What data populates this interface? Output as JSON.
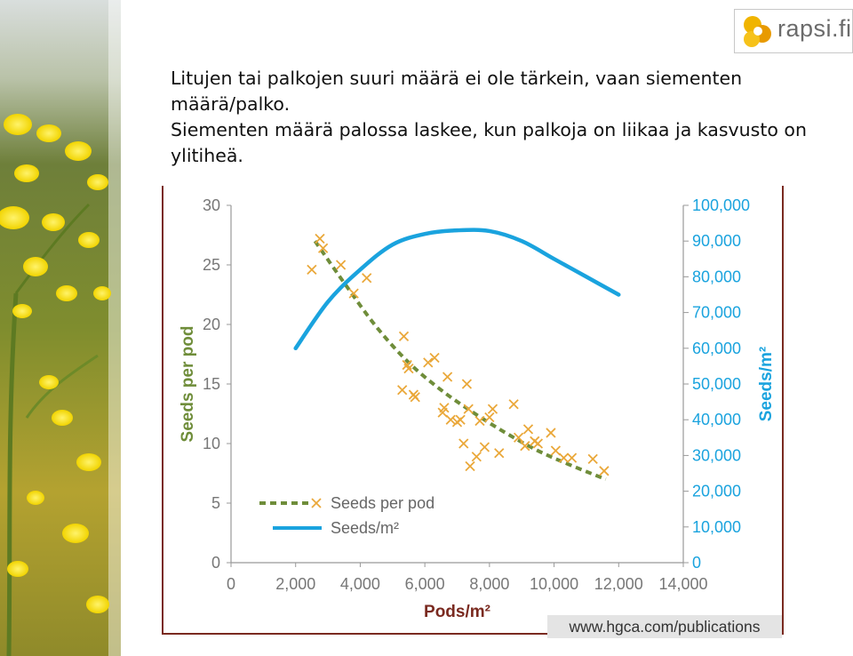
{
  "logo": {
    "text": "rapsi.fi"
  },
  "heading": {
    "line1": "Litujen tai palkojen suuri määrä ei ole tärkein, vaan siementen määrä/palko.",
    "line2": "Siementen määrä palossa laskee, kun palkoja on liikaa ja kasvusto on ylitiheä."
  },
  "source": "www.hgca.com/publications",
  "colors": {
    "green": "#6f8d3a",
    "blue": "#1aa3de",
    "orange": "#eaa83a",
    "frame": "#7a2a20"
  },
  "chart_data": {
    "type": "scatter",
    "title": "",
    "xlabel": "Pods/m²",
    "ylabel": "Seeds per pod",
    "y2label": "Seeds/m²",
    "xlim": [
      0,
      14000
    ],
    "ylim": [
      0,
      30
    ],
    "y2lim": [
      0,
      100000
    ],
    "x_ticks": [
      "0",
      "2,000",
      "4,000",
      "6,000",
      "8,000",
      "10,000",
      "12,000",
      "14,000"
    ],
    "y_ticks": [
      "0",
      "5",
      "10",
      "15",
      "20",
      "25",
      "30"
    ],
    "y2_ticks": [
      "0",
      "10,000",
      "20,000",
      "30,000",
      "40,000",
      "50,000",
      "60,000",
      "70,000",
      "80,000",
      "90,000",
      "100,000"
    ],
    "legend": {
      "position": "bottom-left",
      "entries": [
        "Seeds per pod",
        "Seeds/m²"
      ]
    },
    "series": [
      {
        "name": "Seeds per pod",
        "kind": "scatter",
        "axis": "left",
        "points": [
          [
            2500,
            24.6
          ],
          [
            2750,
            27.2
          ],
          [
            2850,
            26.4
          ],
          [
            3400,
            25.0
          ],
          [
            3800,
            22.6
          ],
          [
            4200,
            23.9
          ],
          [
            5300,
            14.5
          ],
          [
            5350,
            19.0
          ],
          [
            5450,
            16.6
          ],
          [
            5500,
            16.3
          ],
          [
            5650,
            14.1
          ],
          [
            5700,
            13.9
          ],
          [
            6100,
            16.8
          ],
          [
            6300,
            17.2
          ],
          [
            6550,
            12.6
          ],
          [
            6600,
            13.0
          ],
          [
            6700,
            15.6
          ],
          [
            6800,
            12.0
          ],
          [
            7000,
            11.8
          ],
          [
            7100,
            12.0
          ],
          [
            7200,
            10.0
          ],
          [
            7300,
            15.0
          ],
          [
            7350,
            12.9
          ],
          [
            7400,
            8.1
          ],
          [
            7600,
            8.9
          ],
          [
            7700,
            11.9
          ],
          [
            7850,
            9.7
          ],
          [
            8000,
            12.2
          ],
          [
            8100,
            12.9
          ],
          [
            8300,
            9.2
          ],
          [
            8750,
            13.3
          ],
          [
            8900,
            10.5
          ],
          [
            9100,
            9.8
          ],
          [
            9200,
            11.2
          ],
          [
            9400,
            10.2
          ],
          [
            9500,
            10.0
          ],
          [
            9900,
            10.9
          ],
          [
            10050,
            9.4
          ],
          [
            10300,
            8.8
          ],
          [
            10550,
            8.8
          ],
          [
            11200,
            8.7
          ],
          [
            11550,
            7.7
          ]
        ]
      },
      {
        "name": "Seeds per pod",
        "kind": "trend-dashed",
        "axis": "left",
        "x": [
          2600,
          3500,
          4500,
          5500,
          6500,
          7500,
          8500,
          9500,
          10500,
          11600
        ],
        "y": [
          27.0,
          23.5,
          19.8,
          16.8,
          14.5,
          12.6,
          10.9,
          9.4,
          8.2,
          7.0
        ]
      },
      {
        "name": "Seeds/m²",
        "kind": "line",
        "axis": "right",
        "x": [
          2000,
          3000,
          4000,
          5000,
          6000,
          7000,
          8000,
          9000,
          10000,
          11000,
          12000
        ],
        "y": [
          60000,
          73000,
          82000,
          89000,
          92000,
          93000,
          92800,
          90000,
          85000,
          80000,
          75000
        ]
      }
    ]
  }
}
